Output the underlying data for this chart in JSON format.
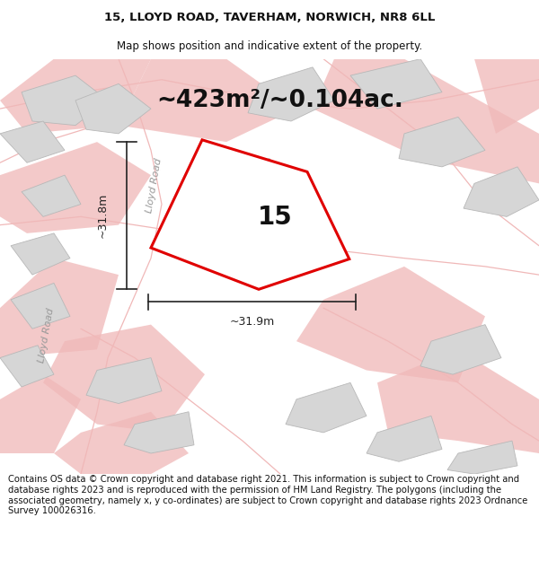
{
  "title": "15, LLOYD ROAD, TAVERHAM, NORWICH, NR8 6LL",
  "subtitle": "Map shows position and indicative extent of the property.",
  "area_label": "~423m²/~0.104ac.",
  "number_label": "15",
  "dim_v": "~31.8m",
  "dim_h": "~31.9m",
  "road_label_upper": "Lloyd Road",
  "road_label_lower": "Lloyd Road",
  "copyright_text": "Contains OS data © Crown copyright and database right 2021. This information is subject to Crown copyright and database rights 2023 and is reproduced with the permission of HM Land Registry. The polygons (including the associated geometry, namely x, y co-ordinates) are subject to Crown copyright and database rights 2023 Ordnance Survey 100026316.",
  "bg_color": "#f2f2f2",
  "road_color": "#f0b8b8",
  "building_color": "#d6d6d6",
  "building_edge": "#b8b8b8",
  "highlight_color": "#e00000",
  "dim_color": "#222222",
  "text_color": "#111111",
  "title_fontsize": 9.5,
  "subtitle_fontsize": 8.5,
  "area_fontsize": 19,
  "number_fontsize": 20,
  "dim_fontsize": 9,
  "road_fontsize": 8,
  "copyright_fontsize": 7.2
}
